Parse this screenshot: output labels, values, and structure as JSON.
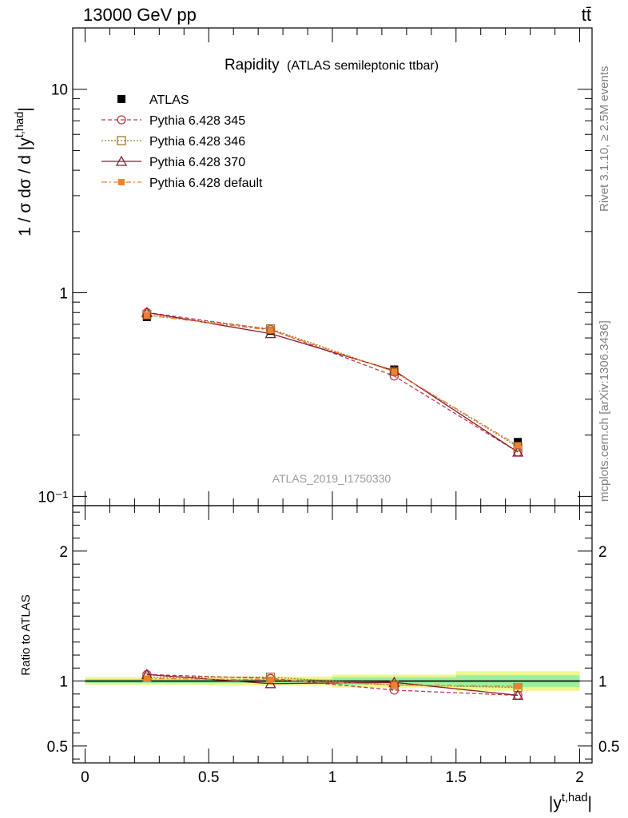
{
  "header": {
    "left": "13000 GeV pp",
    "right": "tt̄"
  },
  "side_labels": {
    "rivet": "Rivet 3.1.10, ≥ 2.5M events",
    "mcplots": "mcplots.cern.ch [arXiv:1306.3436]"
  },
  "watermark": "ATLAS_2019_I1750330",
  "chart_data": [
    {
      "type": "line",
      "title_main": "Rapidity",
      "title_sub": "(ATLAS semileptonic ttbar)",
      "ylabel": "1 / σ dσ / d |y^{t,had}|",
      "xlabel": "|y^{t,had}|",
      "yscale": "log",
      "xlim": [
        -0.05,
        2.05
      ],
      "ylim": [
        0.09,
        20
      ],
      "legend_placement": "top-left",
      "x": [
        0.25,
        0.75,
        1.25,
        1.75
      ],
      "series": [
        {
          "name": "ATLAS",
          "values": [
            0.76,
            0.65,
            0.42,
            0.185
          ],
          "color": "#000000",
          "marker": "square-filled",
          "dash": "none"
        },
        {
          "name": "Pythia 6.428 345",
          "values": [
            0.8,
            0.66,
            0.39,
            0.165
          ],
          "color": "#c0394b",
          "marker": "circle-open",
          "dash": "dashed"
        },
        {
          "name": "Pythia 6.428 346",
          "values": [
            0.78,
            0.665,
            0.41,
            0.175
          ],
          "color": "#a07a28",
          "marker": "square-open",
          "dash": "dotted"
        },
        {
          "name": "Pythia 6.428 370",
          "values": [
            0.8,
            0.63,
            0.415,
            0.165
          ],
          "color": "#8b1a2e",
          "marker": "triangle-open",
          "dash": "solid"
        },
        {
          "name": "Pythia 6.428 default",
          "values": [
            0.775,
            0.655,
            0.41,
            0.178
          ],
          "color": "#f08030",
          "marker": "square-filled-small",
          "dash": "dashdot"
        }
      ],
      "yticks": [
        {
          "value": 0.1,
          "label": "10⁻¹"
        },
        {
          "value": 1,
          "label": "1"
        },
        {
          "value": 10,
          "label": "10"
        }
      ]
    },
    {
      "type": "line",
      "ylabel": "Ratio to ATLAS",
      "xlabel": "|y^{t,had}|",
      "ylim": [
        0.37,
        2.35
      ],
      "xlim": [
        -0.05,
        2.05
      ],
      "x": [
        0.25,
        0.75,
        1.25,
        1.75
      ],
      "bands": [
        {
          "x0": 0.0,
          "x1": 0.5,
          "inner": 0.015,
          "outer": 0.03
        },
        {
          "x0": 0.5,
          "x1": 1.0,
          "inner": 0.015,
          "outer": 0.035
        },
        {
          "x0": 1.0,
          "x1": 1.5,
          "inner": 0.03,
          "outer": 0.05
        },
        {
          "x0": 1.5,
          "x1": 2.0,
          "inner": 0.045,
          "outer": 0.075
        }
      ],
      "series": [
        {
          "name": "Pythia 6.428 345",
          "values": [
            1.05,
            1.02,
            0.93,
            0.89
          ]
        },
        {
          "name": "Pythia 6.428 346",
          "values": [
            1.03,
            1.03,
            0.97,
            0.95
          ]
        },
        {
          "name": "Pythia 6.428 370",
          "values": [
            1.05,
            0.98,
            0.99,
            0.89
          ]
        },
        {
          "name": "Pythia 6.428 default",
          "values": [
            1.02,
            1.01,
            0.97,
            0.96
          ]
        }
      ],
      "yticks": [
        {
          "value": 0.5,
          "label": "0.5"
        },
        {
          "value": 1,
          "label": "1"
        },
        {
          "value": 2,
          "label": "2"
        }
      ],
      "xticks": [
        {
          "value": 0,
          "label": "0"
        },
        {
          "value": 0.5,
          "label": "0.5"
        },
        {
          "value": 1,
          "label": "1"
        },
        {
          "value": 1.5,
          "label": "1.5"
        },
        {
          "value": 2,
          "label": "2"
        }
      ]
    }
  ]
}
